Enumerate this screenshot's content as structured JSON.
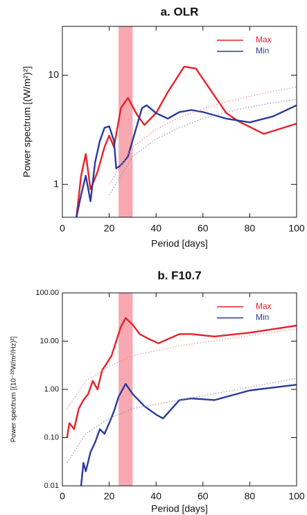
{
  "chart_data": [
    {
      "type": "line",
      "title": "a. OLR",
      "x_label": "Period [days]",
      "y_label": "Power spectrum [(W/m²)²]",
      "xlim": [
        0,
        100
      ],
      "xticks": [
        0,
        20,
        40,
        60,
        80,
        100
      ],
      "ylim": [
        0.5,
        28
      ],
      "yticks": [
        1,
        10
      ],
      "log_y": true,
      "legend": "top-right",
      "shaded_range": [
        24,
        30
      ],
      "shade_color": "#f7a8b0",
      "series": [
        {
          "name": "Max",
          "color": "#e8202a",
          "x": [
            6,
            8,
            10,
            12,
            15,
            18,
            20,
            22,
            25,
            28,
            32,
            35,
            40,
            45,
            52,
            57,
            62,
            70,
            75,
            86,
            100
          ],
          "values": [
            0.5,
            1.2,
            1.9,
            0.9,
            1.3,
            2.2,
            2.8,
            2.2,
            5,
            6.2,
            4.3,
            3.5,
            4.5,
            7,
            12,
            11.5,
            8,
            4.5,
            3.8,
            2.9,
            3.6
          ]
        },
        {
          "name": "Min",
          "color": "#2a3a9a",
          "x": [
            6,
            8,
            10,
            12,
            14,
            16,
            18,
            20,
            22,
            23,
            25,
            28,
            31,
            34,
            36,
            40,
            45,
            50,
            55,
            60,
            70,
            80,
            90,
            100
          ],
          "values": [
            0.5,
            0.8,
            1.2,
            0.7,
            1.6,
            2.5,
            3.3,
            3.4,
            2.5,
            1.4,
            1.5,
            1.8,
            3,
            5,
            5.3,
            4.5,
            4,
            4.6,
            4.8,
            4.6,
            4,
            3.7,
            4.2,
            5.3
          ]
        },
        {
          "style": "dotted",
          "color": "#f08a90",
          "x": [
            20,
            30,
            40,
            50,
            60,
            70,
            80,
            90,
            100
          ],
          "values": [
            1,
            2.2,
            3.2,
            4.1,
            4.9,
            5.7,
            6.4,
            7.1,
            7.8
          ]
        },
        {
          "style": "dotted",
          "color": "#8a90c8",
          "x": [
            20,
            30,
            40,
            50,
            60,
            70,
            80,
            90,
            100
          ],
          "values": [
            0.8,
            1.8,
            2.6,
            3.3,
            4,
            4.6,
            5.1,
            5.6,
            6
          ]
        }
      ]
    },
    {
      "type": "line",
      "title": "b. F10.7",
      "x_label": "Period [days]",
      "y_label": "Power spectrum [(10⁻²²W/m²/Hz)²]",
      "xlim": [
        0,
        100
      ],
      "xticks": [
        0,
        20,
        40,
        60,
        80,
        100
      ],
      "ylim": [
        0.01,
        100
      ],
      "yticks": [
        0.01,
        {
          "value": 0.1,
          "label": "0.10"
        },
        {
          "value": 1,
          "label": "1.00"
        },
        {
          "value": 10,
          "label": "10.00"
        },
        {
          "value": 100,
          "label": "100.00"
        }
      ],
      "log_y": true,
      "legend": "top-right",
      "shaded_range": [
        24,
        30
      ],
      "shade_color": "#f7a8b0",
      "series": [
        {
          "name": "Max",
          "color": "#e8202a",
          "x": [
            2,
            3,
            5,
            7,
            9,
            11,
            13,
            15,
            17,
            19,
            21,
            23,
            25,
            27,
            30,
            33,
            37,
            41,
            45,
            50,
            55,
            65,
            80,
            100
          ],
          "values": [
            0.1,
            0.2,
            0.15,
            0.4,
            0.6,
            0.8,
            1.5,
            1,
            2.5,
            3.5,
            5,
            10,
            20,
            30,
            22,
            14,
            11,
            9,
            11,
            14,
            14,
            12.5,
            15,
            21
          ]
        },
        {
          "name": "Min",
          "color": "#2a3a9a",
          "x": [
            8,
            9,
            10,
            12,
            14,
            16,
            18,
            20,
            22,
            24,
            27,
            30,
            35,
            40,
            43,
            50,
            55,
            65,
            80,
            100
          ],
          "values": [
            0.01,
            0.03,
            0.02,
            0.05,
            0.08,
            0.15,
            0.12,
            0.2,
            0.35,
            0.7,
            1.3,
            0.8,
            0.45,
            0.3,
            0.25,
            0.6,
            0.65,
            0.6,
            0.95,
            1.25
          ]
        },
        {
          "style": "dotted",
          "color": "#f08a90",
          "x": [
            2,
            10,
            20,
            30,
            50,
            75,
            100
          ],
          "values": [
            0.4,
            1.5,
            3,
            5,
            8,
            12,
            18
          ]
        },
        {
          "style": "dotted",
          "color": "#8a90c8",
          "x": [
            2,
            10,
            20,
            30,
            50,
            75,
            100
          ],
          "values": [
            0.03,
            0.12,
            0.25,
            0.4,
            0.6,
            1,
            1.7
          ]
        }
      ]
    }
  ]
}
